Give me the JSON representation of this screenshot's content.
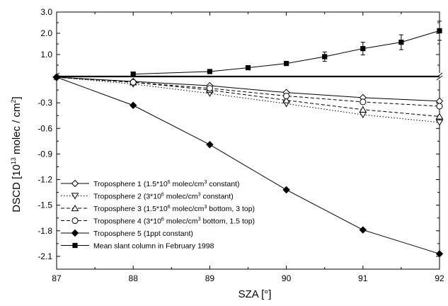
{
  "chart_data": {
    "type": "line",
    "xlabel": "SZA [°]",
    "ylabel_parts": {
      "a": "DSCD [10",
      "b": "13",
      "c": " molec / cm",
      "d": "2",
      "e": "]"
    },
    "x_ticks": [
      "87",
      "88",
      "89",
      "90",
      "91",
      "92"
    ],
    "upper_panel": {
      "ylim": [
        0,
        3.0
      ],
      "y_ticks": [
        "3.0",
        "2.0",
        "1.0"
      ],
      "series": [
        {
          "id": "mean",
          "name": "Mean slant column in February 1998",
          "marker": "square-filled",
          "dash": "solid",
          "x": [
            88.0,
            89.0,
            89.5,
            90.0,
            90.5,
            91.0,
            91.5,
            92.0
          ],
          "y": [
            0.08,
            0.2,
            0.38,
            0.58,
            0.9,
            1.28,
            1.58,
            2.12
          ],
          "err": [
            0.05,
            0.08,
            0.08,
            0.1,
            0.22,
            0.3,
            0.35,
            0.45
          ]
        }
      ]
    },
    "lower_panel": {
      "ylim": [
        -2.25,
        0.0
      ],
      "y_ticks": [
        "-0.3",
        "-0.6",
        "-0.9",
        "-1.2",
        "-1.5",
        "-1.8",
        "-2.1"
      ],
      "series": [
        {
          "id": "t1",
          "name": "Troposphere 1 (1.5*10",
          "name_sup": "6",
          "name_mid": " molec/cm",
          "name_sup2": "3",
          "name_end": " constant)",
          "marker": "diamond-open",
          "dash": "solid",
          "x": [
            87,
            88,
            89,
            90,
            91,
            92
          ],
          "y": [
            0.0,
            -0.05,
            -0.1,
            -0.18,
            -0.24,
            -0.28
          ]
        },
        {
          "id": "t2",
          "name": "Troposphere 2 (3*10",
          "name_sup": "6",
          "name_mid": " molec/cm",
          "name_sup2": "3",
          "name_end": " constant)",
          "marker": "triangle-down-open",
          "dash": "dotted",
          "x": [
            87,
            88,
            89,
            90,
            91,
            92
          ],
          "y": [
            0.0,
            -0.08,
            -0.19,
            -0.31,
            -0.44,
            -0.53
          ]
        },
        {
          "id": "t3",
          "name": "Troposphere 3 (1.5*10",
          "name_sup": "6",
          "name_mid": " molec/cm",
          "name_sup2": "3",
          "name_end": "  bottom, 3 top)",
          "marker": "triangle-up-open",
          "dash": "dashed",
          "x": [
            87,
            88,
            89,
            90,
            91,
            92
          ],
          "y": [
            0.0,
            -0.06,
            -0.15,
            -0.27,
            -0.38,
            -0.46
          ]
        },
        {
          "id": "t4",
          "name": "Troposphere 4 (3*10",
          "name_sup": "6",
          "name_mid": " molec/cm",
          "name_sup2": "3",
          "name_end": "  bottom, 1.5 top)",
          "marker": "circle-open",
          "dash": "dashed",
          "x": [
            87,
            88,
            89,
            90,
            91,
            92
          ],
          "y": [
            0.0,
            -0.06,
            -0.13,
            -0.22,
            -0.29,
            -0.34
          ]
        },
        {
          "id": "t5",
          "name": "Troposphere 5 (1ppt constant)",
          "name_sup": "",
          "name_mid": "",
          "name_sup2": "",
          "name_end": "",
          "marker": "diamond-filled",
          "dash": "solid",
          "x": [
            87,
            88,
            89,
            90,
            91,
            92
          ],
          "y": [
            0.0,
            -0.33,
            -0.79,
            -1.32,
            -1.79,
            -2.07
          ]
        }
      ]
    },
    "legend": {
      "placement": "bottom-left",
      "order": [
        "t1",
        "t2",
        "t3",
        "t4",
        "t5",
        "mean"
      ]
    }
  }
}
